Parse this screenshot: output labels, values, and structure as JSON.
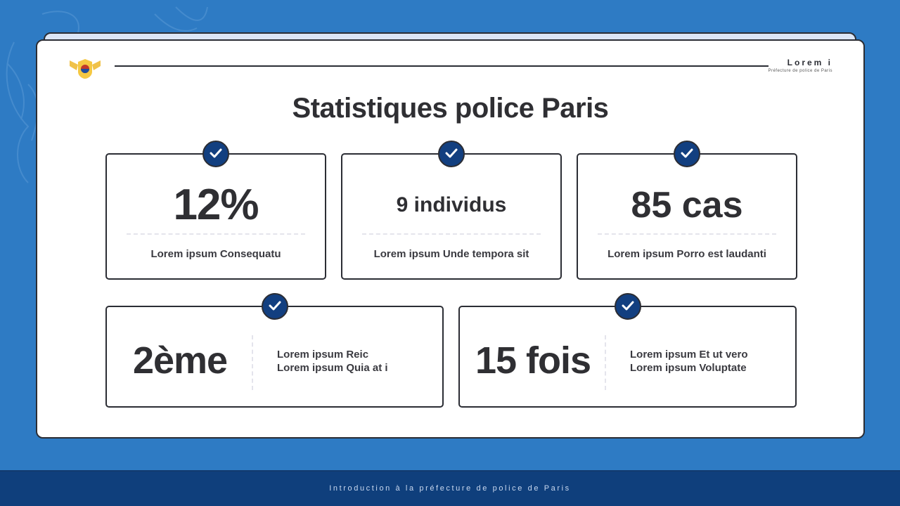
{
  "header": {
    "brand_name": "Lorem i",
    "brand_subtitle": "Préfecture de police de Paris"
  },
  "title": "Statistiques police Paris",
  "stats_top": [
    {
      "value": "12%",
      "label": "Lorem ipsum Consequatu"
    },
    {
      "value": "9 individus",
      "label": "Lorem ipsum Unde tempora sit"
    },
    {
      "value": "85 cas",
      "label": "Lorem ipsum Porro est laudanti"
    }
  ],
  "stats_bottom": [
    {
      "value": "2ème",
      "line1": "Lorem ipsum Reic",
      "line2": "Lorem ipsum Quia at i"
    },
    {
      "value": "15 fois",
      "line1": "Lorem ipsum Et ut vero",
      "line2": "Lorem ipsum Voluptate"
    }
  ],
  "footer": {
    "text": "Introduction à la préfecture de police de Paris"
  },
  "colors": {
    "background": "#2e7bc4",
    "check_badge": "#123f80",
    "footer": "#0f3f7c"
  },
  "icons": {
    "check": "check-icon",
    "logo": "police-badge-logo"
  }
}
